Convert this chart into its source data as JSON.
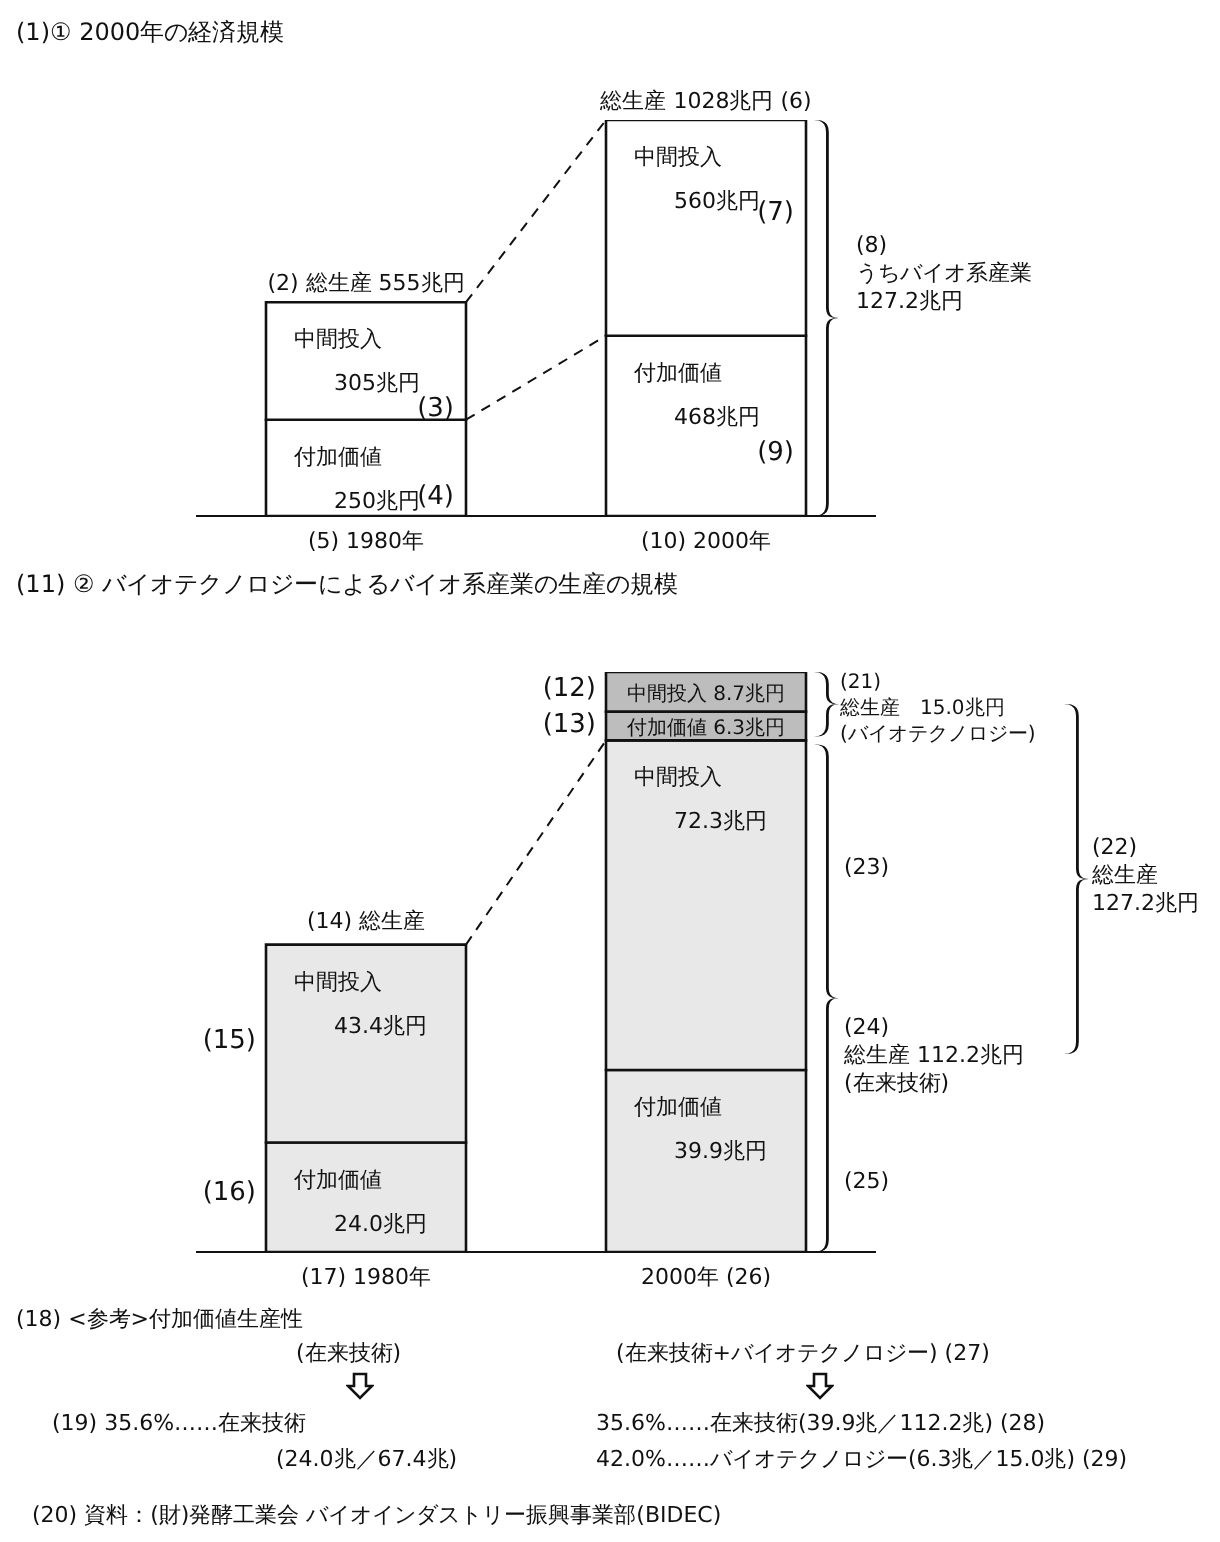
{
  "chart_data": [
    {
      "type": "bar",
      "title": "(1)① 2000年の経済規模",
      "stacked": true,
      "categories": [
        "(5) 1980年",
        "(10) 2000年"
      ],
      "series": [
        {
          "name": "付加価値",
          "color": "#ffffff",
          "values": [
            250,
            468
          ],
          "value_labels": [
            "250兆円",
            "468兆円"
          ]
        },
        {
          "name": "中間投入",
          "color": "#ffffff",
          "values": [
            305,
            560
          ],
          "value_labels": [
            "305兆円",
            "560兆円"
          ]
        }
      ],
      "totals": [
        "(2) 総生産 555兆円",
        "総生産 1028兆円 (6)"
      ],
      "annotations": [
        "(3)",
        "(4)",
        "(7)",
        "(9)",
        "(8)\nうちバイオ系産業\n127.2兆円"
      ]
    },
    {
      "type": "bar",
      "title": "(11) ② バイオテクノロジーによるバイオ系産業の生産の規模",
      "stacked": true,
      "categories": [
        "(17) 1980年",
        "2000年 (26)"
      ],
      "series": [
        {
          "name": "付加価値",
          "color": "#e8e8e8",
          "values": [
            24.0,
            39.9
          ],
          "value_labels": [
            "24.0兆円",
            "39.9兆円"
          ]
        },
        {
          "name": "中間投入",
          "color": "#e8e8e8",
          "values": [
            43.4,
            72.3
          ],
          "value_labels": [
            "43.4兆円",
            "72.3兆円"
          ]
        },
        {
          "name": "付加価値",
          "color": "#bdbdbd",
          "values": [
            null,
            6.3
          ],
          "value_labels": [
            null,
            "6.3兆円"
          ]
        },
        {
          "name": "中間投入",
          "color": "#bdbdbd",
          "values": [
            null,
            8.7
          ],
          "value_labels": [
            null,
            "8.7兆円"
          ]
        }
      ],
      "annotations": [
        "(12)",
        "(13)",
        "(14) 総生産",
        "(15)",
        "(16)",
        "(21)\n総生産　15.0兆円\n(バイオテクノロジー)",
        "(23)",
        "(24)\n総生産 112.2兆円\n(在来技術)",
        "(25)",
        "(22)\n総生産\n127.2兆円",
        "(18) <参考>付加価値生産性",
        "(在来技術)",
        "(在来技術+バイオテクノロジー) (27)",
        "(19) 35.6%……在来技術",
        "(24.0兆／67.4兆)",
        "35.6%……在来技術(39.9兆／112.2兆) (28)",
        "42.0%……バイオテクノロジー(6.3兆／15.0兆) (29)",
        "(20) 資料：(財)発酵工業会 バイオインダストリー振興事業部(BIDEC)"
      ]
    }
  ]
}
